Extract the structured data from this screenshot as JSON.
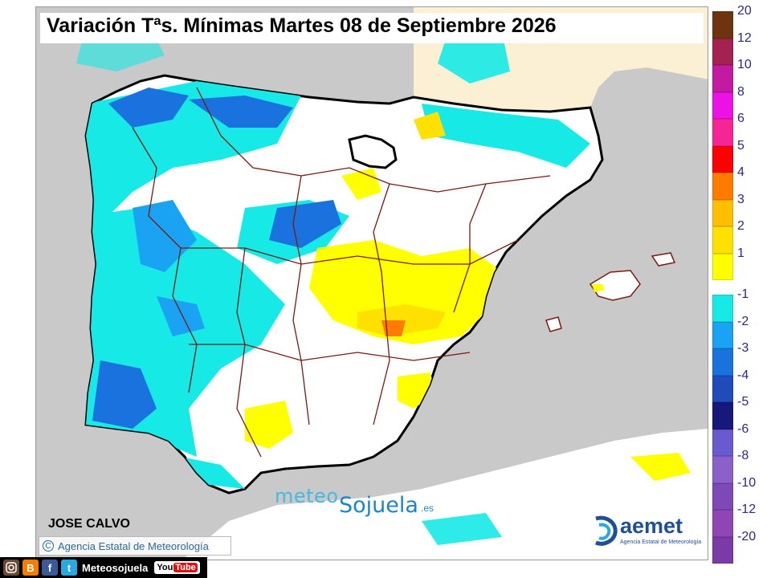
{
  "title": "Variación Tªs. Mínimas Martes 08 de Septiembre 2026",
  "author": "JOSE CALVO",
  "copyright": "Agencia Estatal de Meteorología",
  "copyright_symbol": "C",
  "watermark": {
    "meteo": "meteo",
    "sojuela": "Sojuela",
    "es": ".es"
  },
  "aemet": {
    "logo_text": "aemet",
    "subtitle": "Agencia Estatal de Meteorología"
  },
  "social": {
    "icons": [
      "instagram-icon",
      "blogger-icon",
      "facebook-icon",
      "twitter-icon"
    ],
    "blog_letter": "B",
    "fb_letter": "f",
    "tw_letter": "t",
    "handle": "Meteosojuela",
    "youtube": {
      "you": "You",
      "tube": "Tube"
    }
  },
  "legend": {
    "positive": [
      {
        "label": "20",
        "color": "#6e3410"
      },
      {
        "label": "12",
        "color": "#a3224f"
      },
      {
        "label": "10",
        "color": "#c21aa0"
      },
      {
        "label": "8",
        "color": "#ec12e6"
      },
      {
        "label": "6",
        "color": "#f52595"
      },
      {
        "label": "5",
        "color": "#ff0000"
      },
      {
        "label": "4",
        "color": "#ff7b00"
      },
      {
        "label": "3",
        "color": "#ffbf00"
      },
      {
        "label": "2",
        "color": "#ffe100"
      },
      {
        "label": "1",
        "color": "#ffff00"
      }
    ],
    "negative": [
      {
        "label": "-1",
        "color": "#16e9e6"
      },
      {
        "label": "-2",
        "color": "#1aa3f2"
      },
      {
        "label": "-3",
        "color": "#1a72df"
      },
      {
        "label": "-4",
        "color": "#1f4cba"
      },
      {
        "label": "-5",
        "color": "#16187a"
      },
      {
        "label": "-6",
        "color": "#6a5ad0"
      },
      {
        "label": "-8",
        "color": "#8a60c9"
      },
      {
        "label": "-10",
        "color": "#7d49b6"
      },
      {
        "label": "-12",
        "color": "#8f45b4"
      },
      {
        "label": "-20",
        "color": "#7a3aa8"
      }
    ]
  },
  "colors": {
    "sea": "#c9c9c9",
    "land_neutral": "#ffffff",
    "foreign_land": "#fbefd4",
    "border_national": "#000000",
    "border_province": "#7a1a10"
  }
}
